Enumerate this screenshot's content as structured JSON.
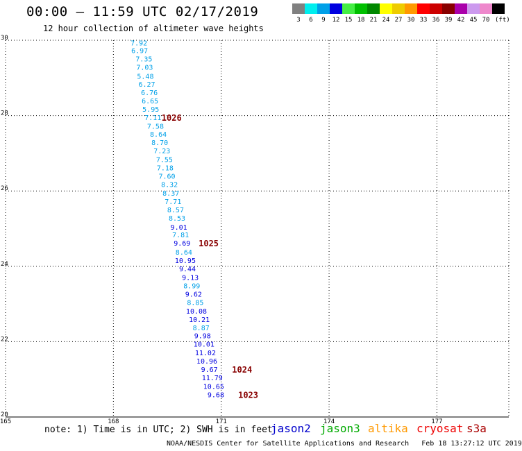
{
  "header": {
    "title": "00:00 – 11:59 UTC 02/17/2019",
    "subtitle": "12 hour collection of altimeter wave heights"
  },
  "colorbar": {
    "unit": "(ft)",
    "entries": [
      {
        "label": "3",
        "color": "#808080"
      },
      {
        "label": "6",
        "color": "#00eeee"
      },
      {
        "label": "9",
        "color": "#00a0e8"
      },
      {
        "label": "12",
        "color": "#0000e0"
      },
      {
        "label": "15",
        "color": "#44ee44"
      },
      {
        "label": "18",
        "color": "#00c000"
      },
      {
        "label": "21",
        "color": "#008800"
      },
      {
        "label": "24",
        "color": "#ffff00"
      },
      {
        "label": "27",
        "color": "#eecc00"
      },
      {
        "label": "30",
        "color": "#ff9900"
      },
      {
        "label": "33",
        "color": "#ff0000"
      },
      {
        "label": "36",
        "color": "#cc0000"
      },
      {
        "label": "39",
        "color": "#880000"
      },
      {
        "label": "42",
        "color": "#aa00aa"
      },
      {
        "label": "45",
        "color": "#cc99ee"
      },
      {
        "label": "70",
        "color": "#ee88cc"
      },
      {
        "label": "",
        "color": "#000000"
      }
    ]
  },
  "chart_data": {
    "type": "scatter",
    "xlim": [
      165,
      179
    ],
    "ylim": [
      20,
      30
    ],
    "x_ticks": [
      "165",
      "168",
      "171",
      "174",
      "177"
    ],
    "y_ticks": [
      "30",
      "28",
      "26",
      "24",
      "22",
      "20"
    ],
    "grid": true,
    "track_points": [
      {
        "lon": 168.71,
        "lat": 29.94,
        "label": "7.92",
        "color": "#00a0e8"
      },
      {
        "lon": 168.73,
        "lat": 29.73,
        "label": "6.97",
        "color": "#00a0e8"
      },
      {
        "lon": 168.85,
        "lat": 29.51,
        "label": "7.35",
        "color": "#00a0e8"
      },
      {
        "lon": 168.87,
        "lat": 29.29,
        "label": "7.03",
        "color": "#00a0e8"
      },
      {
        "lon": 168.89,
        "lat": 29.05,
        "label": "5.48",
        "color": "#00a0e8"
      },
      {
        "lon": 168.93,
        "lat": 28.84,
        "label": "6.27",
        "color": "#00a0e8"
      },
      {
        "lon": 169.0,
        "lat": 28.62,
        "label": "6.76",
        "color": "#00a0e8"
      },
      {
        "lon": 169.02,
        "lat": 28.4,
        "label": "6.65",
        "color": "#00a0e8"
      },
      {
        "lon": 169.04,
        "lat": 28.18,
        "label": "5.95",
        "color": "#00a0e8"
      },
      {
        "lon": 169.1,
        "lat": 27.96,
        "label": "7.11",
        "color": "#00a0e8"
      },
      {
        "lon": 169.17,
        "lat": 27.73,
        "label": "7.58",
        "color": "#00a0e8"
      },
      {
        "lon": 169.25,
        "lat": 27.51,
        "label": "8.64",
        "color": "#00a0e8"
      },
      {
        "lon": 169.29,
        "lat": 27.29,
        "label": "8.70",
        "color": "#00a0e8"
      },
      {
        "lon": 169.35,
        "lat": 27.07,
        "label": "7.23",
        "color": "#00a0e8"
      },
      {
        "lon": 169.42,
        "lat": 26.84,
        "label": "7.55",
        "color": "#00a0e8"
      },
      {
        "lon": 169.44,
        "lat": 26.62,
        "label": "7.18",
        "color": "#00a0e8"
      },
      {
        "lon": 169.49,
        "lat": 26.4,
        "label": "7.60",
        "color": "#00a0e8"
      },
      {
        "lon": 169.56,
        "lat": 26.18,
        "label": "8.32",
        "color": "#00a0e8"
      },
      {
        "lon": 169.6,
        "lat": 25.95,
        "label": "8.37",
        "color": "#00a0e8"
      },
      {
        "lon": 169.66,
        "lat": 25.73,
        "label": "7.71",
        "color": "#00a0e8"
      },
      {
        "lon": 169.73,
        "lat": 25.51,
        "label": "8.57",
        "color": "#00a0e8"
      },
      {
        "lon": 169.77,
        "lat": 25.29,
        "label": "8.53",
        "color": "#00a0e8"
      },
      {
        "lon": 169.82,
        "lat": 25.05,
        "label": "9.01",
        "color": "#0000e0"
      },
      {
        "lon": 169.87,
        "lat": 24.84,
        "label": "7.81",
        "color": "#00a0e8"
      },
      {
        "lon": 169.91,
        "lat": 24.62,
        "label": "9.69",
        "color": "#0000e0"
      },
      {
        "lon": 169.96,
        "lat": 24.38,
        "label": "8.64",
        "color": "#00a0e8"
      },
      {
        "lon": 170.0,
        "lat": 24.16,
        "label": "10.95",
        "color": "#0000e0"
      },
      {
        "lon": 170.06,
        "lat": 23.94,
        "label": "9.44",
        "color": "#0000e0"
      },
      {
        "lon": 170.14,
        "lat": 23.71,
        "label": "9.13",
        "color": "#0000e0"
      },
      {
        "lon": 170.18,
        "lat": 23.49,
        "label": "8.99",
        "color": "#00a0e8"
      },
      {
        "lon": 170.23,
        "lat": 23.27,
        "label": "9.62",
        "color": "#0000e0"
      },
      {
        "lon": 170.28,
        "lat": 23.05,
        "label": "8.85",
        "color": "#00a0e8"
      },
      {
        "lon": 170.31,
        "lat": 22.82,
        "label": "10.08",
        "color": "#0000e0"
      },
      {
        "lon": 170.39,
        "lat": 22.6,
        "label": "10.21",
        "color": "#0000e0"
      },
      {
        "lon": 170.44,
        "lat": 22.38,
        "label": "8.87",
        "color": "#00a0e8"
      },
      {
        "lon": 170.48,
        "lat": 22.16,
        "label": "9.98",
        "color": "#0000e0"
      },
      {
        "lon": 170.52,
        "lat": 21.94,
        "label": "10.01",
        "color": "#0000e0"
      },
      {
        "lon": 170.56,
        "lat": 21.71,
        "label": "11.02",
        "color": "#0000e0"
      },
      {
        "lon": 170.6,
        "lat": 21.49,
        "label": "10.96",
        "color": "#0000e0"
      },
      {
        "lon": 170.67,
        "lat": 21.27,
        "label": "9.67",
        "color": "#0000e0"
      },
      {
        "lon": 170.75,
        "lat": 21.05,
        "label": "11.79",
        "color": "#0000e0"
      },
      {
        "lon": 170.79,
        "lat": 20.82,
        "label": "10.65",
        "color": "#0000e0"
      },
      {
        "lon": 170.85,
        "lat": 20.6,
        "label": "9.68",
        "color": "#0000e0"
      }
    ],
    "pressure_labels": [
      {
        "lon": 169.62,
        "lat": 27.96,
        "label": "1026",
        "color": "#880000"
      },
      {
        "lon": 170.65,
        "lat": 24.62,
        "label": "1025",
        "color": "#880000"
      },
      {
        "lon": 171.58,
        "lat": 21.27,
        "label": "1024",
        "color": "#880000"
      },
      {
        "lon": 171.75,
        "lat": 20.6,
        "label": "1023",
        "color": "#880000"
      }
    ]
  },
  "footer": {
    "note": "note: 1) Time is in UTC; 2) SWH is in feet",
    "satellites": [
      {
        "name": "jason2",
        "color": "#0000cc"
      },
      {
        "name": "jason3",
        "color": "#00aa00"
      },
      {
        "name": "altika",
        "color": "#ff9900"
      },
      {
        "name": "cryosat",
        "color": "#ee0000"
      },
      {
        "name": "s3a",
        "color": "#aa0000"
      }
    ],
    "credit": "NOAA/NESDIS Center for Satellite Applications and Research   Feb 18 13:27:12 UTC 2019"
  }
}
